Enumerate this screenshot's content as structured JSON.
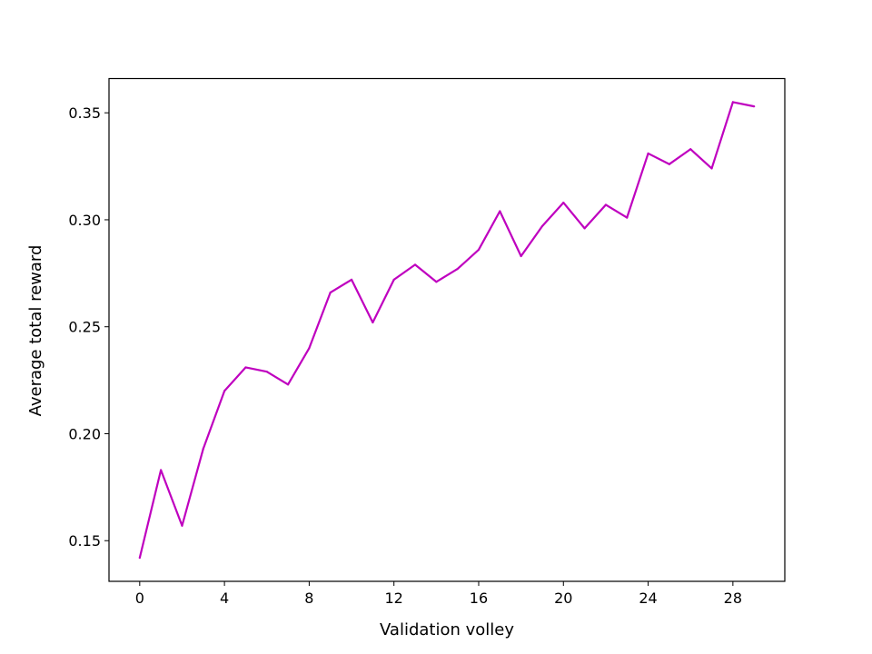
{
  "chart_data": {
    "type": "line",
    "title": "",
    "xlabel": "Validation volley",
    "ylabel": "Average total reward",
    "xlim": [
      -1.45,
      30.45
    ],
    "ylim": [
      0.131,
      0.366
    ],
    "xticks": [
      0,
      4,
      8,
      12,
      16,
      20,
      24,
      28
    ],
    "xtick_labels": [
      "0",
      "4",
      "8",
      "12",
      "16",
      "20",
      "24",
      "28"
    ],
    "yticks": [
      0.15,
      0.2,
      0.25,
      0.3,
      0.35
    ],
    "ytick_labels": [
      "0.15",
      "0.20",
      "0.25",
      "0.30",
      "0.35"
    ],
    "grid": false,
    "series": [
      {
        "name": "Average total reward",
        "color": "#bf00bf",
        "x": [
          0,
          1,
          2,
          3,
          4,
          5,
          6,
          7,
          8,
          9,
          10,
          11,
          12,
          13,
          14,
          15,
          16,
          17,
          18,
          19,
          20,
          21,
          22,
          23,
          24,
          25,
          26,
          27,
          28,
          29
        ],
        "values": [
          0.142,
          0.183,
          0.157,
          0.193,
          0.22,
          0.231,
          0.229,
          0.223,
          0.24,
          0.266,
          0.272,
          0.252,
          0.272,
          0.279,
          0.271,
          0.277,
          0.286,
          0.304,
          0.283,
          0.297,
          0.308,
          0.296,
          0.307,
          0.301,
          0.331,
          0.326,
          0.333,
          0.324,
          0.355,
          0.353
        ]
      }
    ]
  }
}
